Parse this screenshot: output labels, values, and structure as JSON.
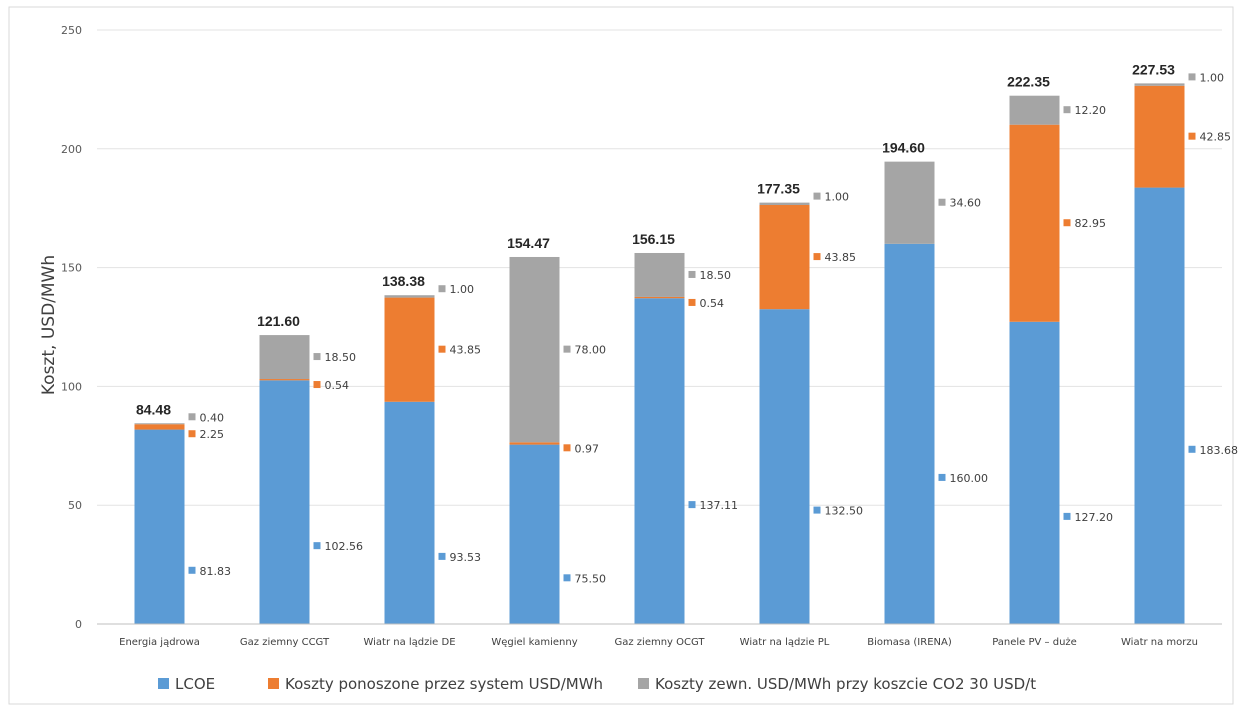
{
  "chart_data": {
    "type": "bar",
    "stacked": true,
    "ylabel": "Koszt, USD/MWh",
    "ylim": [
      0,
      250
    ],
    "yticks": [
      0,
      50,
      100,
      150,
      200,
      250
    ],
    "grid": true,
    "legend_position": "bottom",
    "categories": [
      "Energia jądrowa",
      "Gaz ziemny CCGT",
      "Wiatr na lądzie DE",
      "Węgiel kamienny",
      "Gaz ziemny OCGT",
      "Wiatr na lądzie PL",
      "Biomasa (IRENA)",
      "Panele PV – duże",
      "Wiatr na morzu"
    ],
    "series": [
      {
        "name": "LCOE",
        "color": "#5B9BD5",
        "values": [
          81.83,
          102.56,
          93.53,
          75.5,
          137.11,
          132.5,
          160.0,
          127.2,
          183.68
        ],
        "labels": [
          "81.83",
          "102.56",
          "93.53",
          "75.50",
          "137.11",
          "132.50",
          "160.00",
          "127.20",
          "183.68"
        ]
      },
      {
        "name": "Koszty ponoszone przez system USD/MWh",
        "color": "#ED7D31",
        "values": [
          2.25,
          0.54,
          43.85,
          0.97,
          0.54,
          43.85,
          null,
          82.95,
          42.85
        ],
        "labels": [
          "2.25",
          "0.54",
          "43.85",
          "0.97",
          "0.54",
          "43.85",
          null,
          "82.95",
          "42.85"
        ]
      },
      {
        "name": "Koszty zewn. USD/MWh przy koszcie CO2 30 USD/t",
        "color": "#A5A5A5",
        "values": [
          0.4,
          18.5,
          1.0,
          78.0,
          18.5,
          1.0,
          34.6,
          12.2,
          1.0
        ],
        "labels": [
          "0.40",
          "18.50",
          "1.00",
          "78.00",
          "18.50",
          "1.00",
          "34.60",
          "12.20",
          "1.00"
        ]
      }
    ],
    "totals": [
      "84.48",
      "121.60",
      "138.38",
      "154.47",
      "156.15",
      "177.35",
      "194.60",
      "222.35",
      "227.53"
    ]
  }
}
